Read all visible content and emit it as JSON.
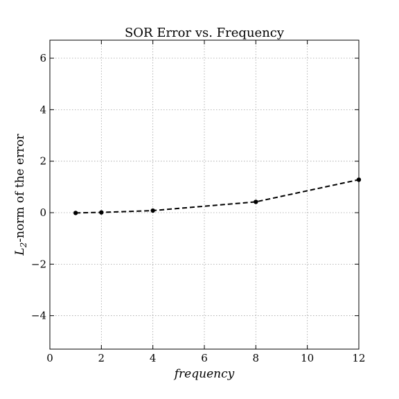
{
  "chart_data": {
    "type": "line",
    "title": "SOR Error vs. Frequency",
    "xlabel": "frequency",
    "ylabel_main": "L",
    "ylabel_sub": "2",
    "ylabel_rest": "-norm of the error",
    "xlim": [
      0,
      12
    ],
    "ylim": [
      -5.3,
      6.7
    ],
    "x_ticks": [
      0,
      2,
      4,
      6,
      8,
      10,
      12
    ],
    "y_ticks": [
      -4,
      -2,
      0,
      2,
      4,
      6
    ],
    "x_tick_labels": [
      "0",
      "2",
      "4",
      "6",
      "8",
      "10",
      "12"
    ],
    "y_tick_labels": [
      "−4",
      "−2",
      "0",
      "2",
      "4",
      "6"
    ],
    "grid": true,
    "series": [
      {
        "x": [
          1,
          2,
          4,
          8,
          12
        ],
        "y": [
          -0.01,
          0.01,
          0.08,
          0.42,
          1.28
        ],
        "style": "dashed",
        "marker": "circle",
        "color": "#000000"
      }
    ]
  }
}
